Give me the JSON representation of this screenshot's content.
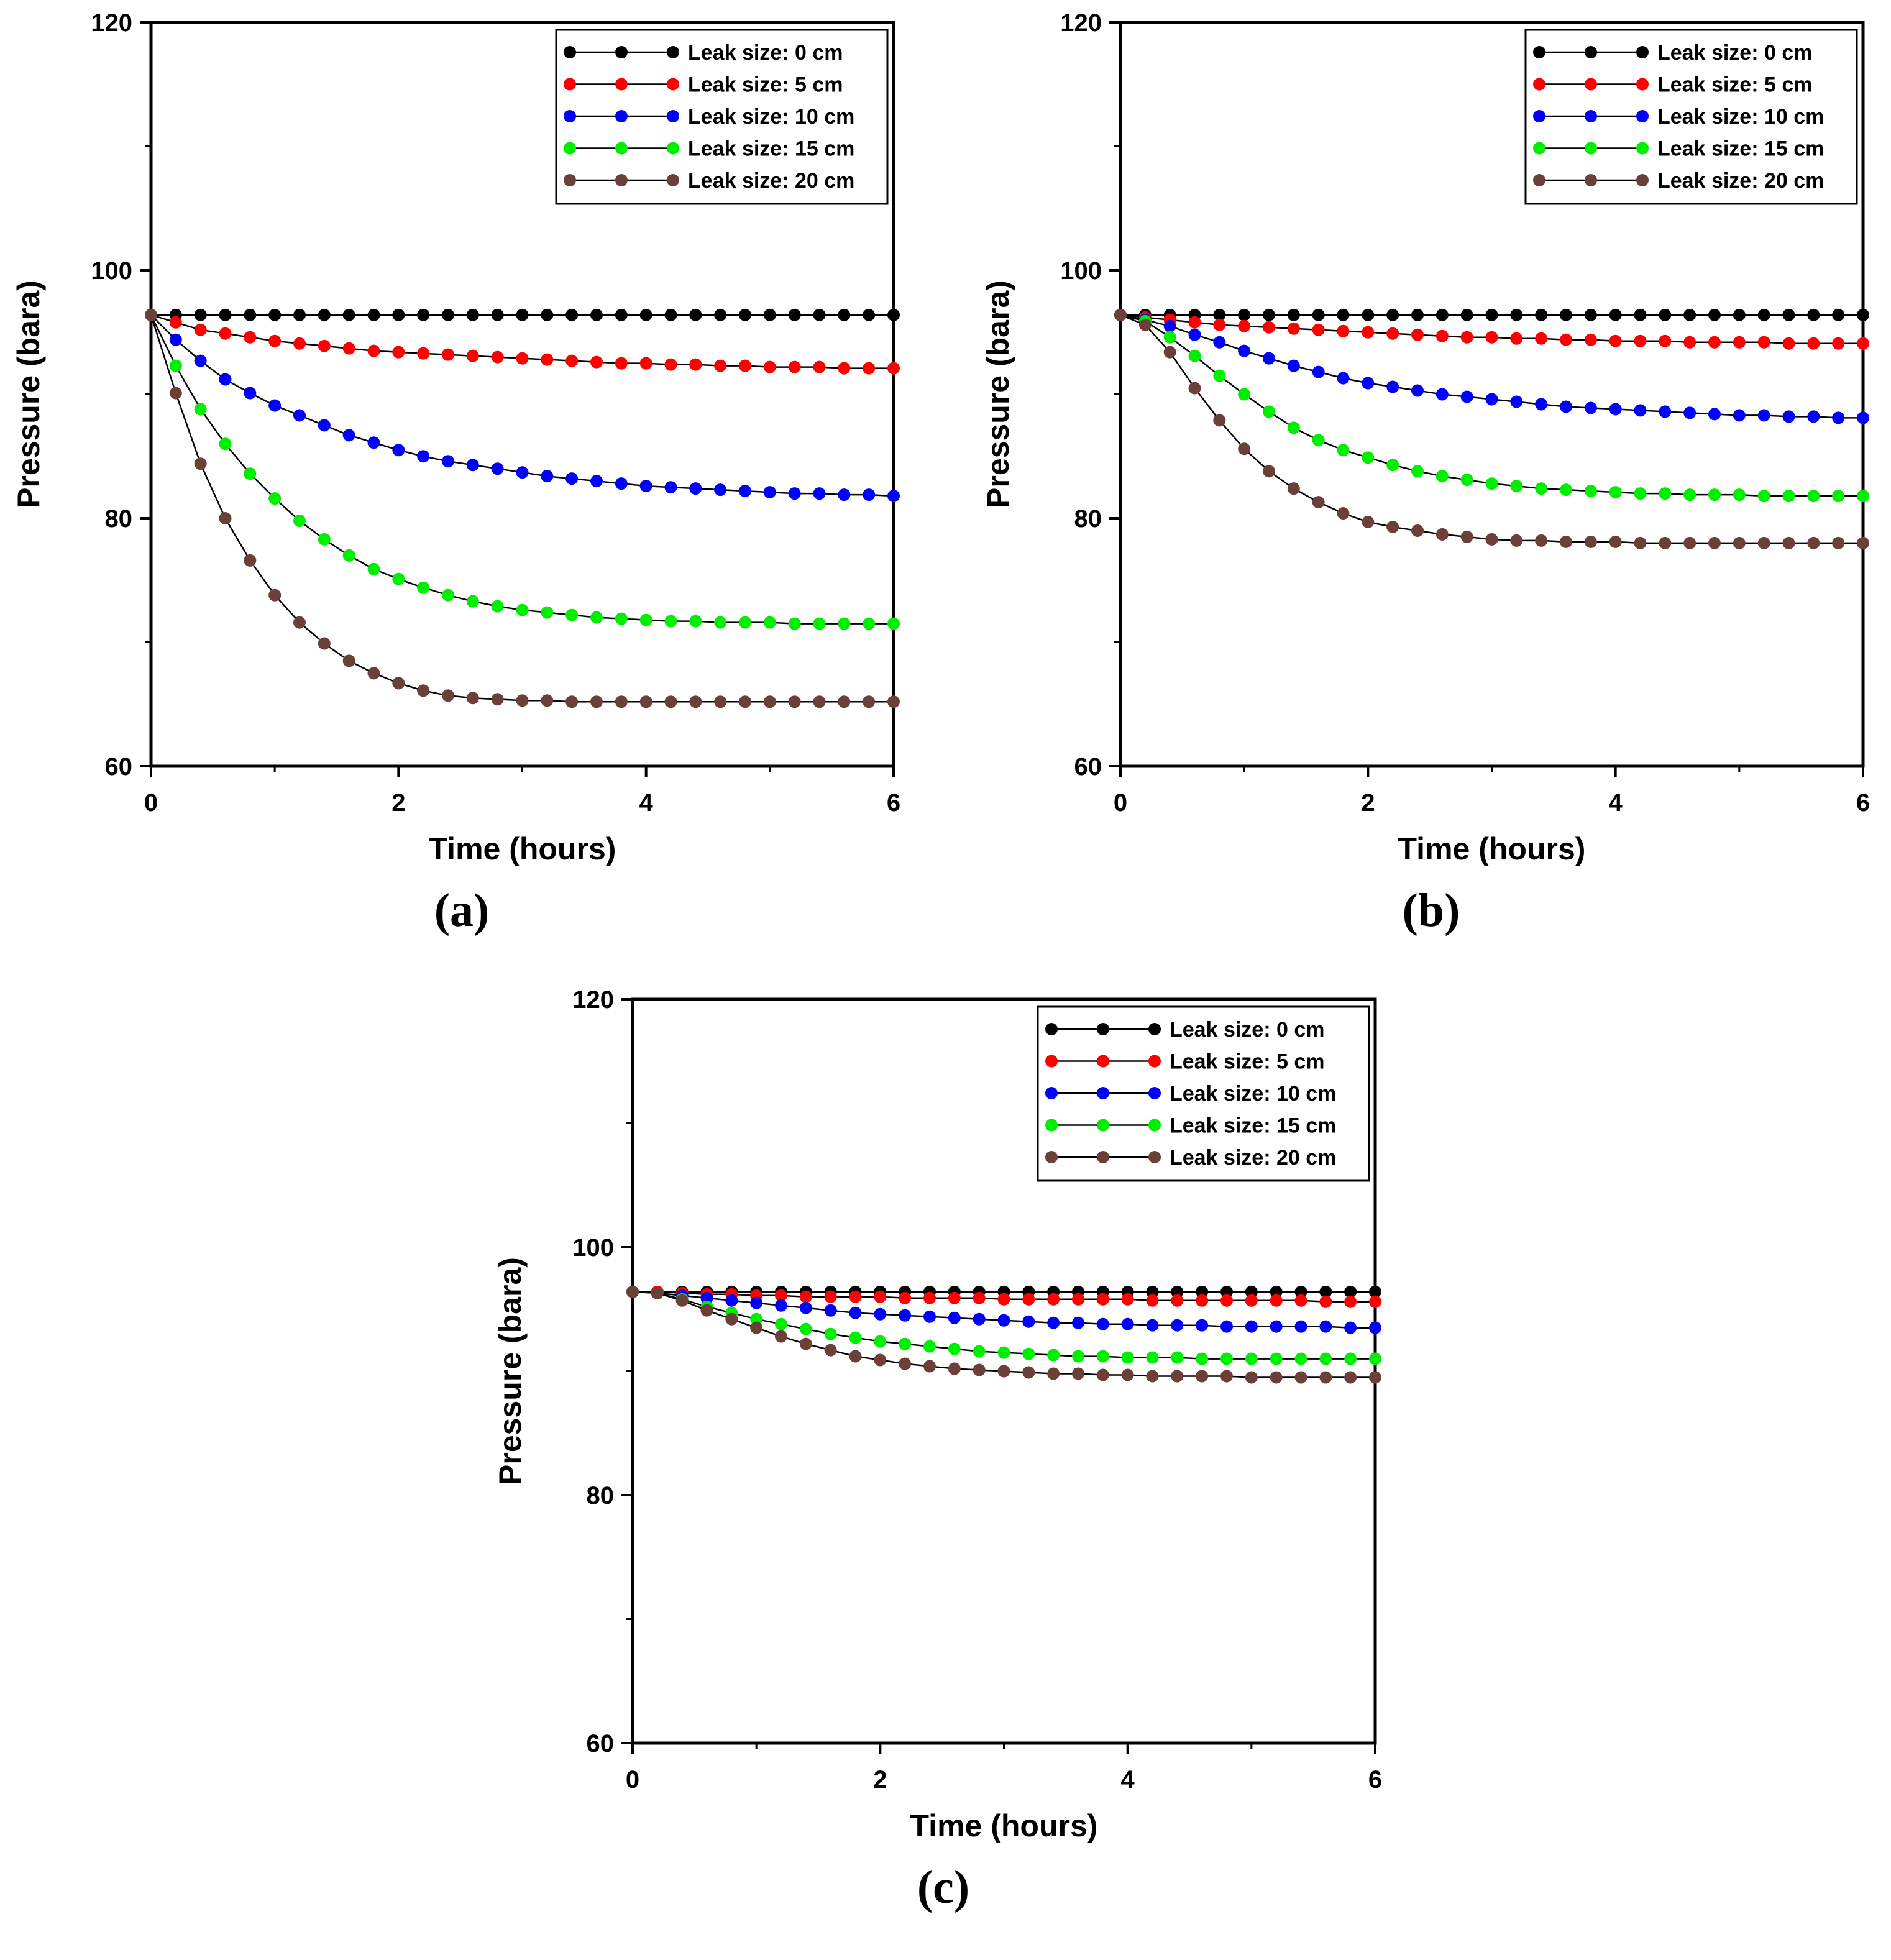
{
  "chart_data": [
    {
      "type": "line",
      "panel_label": "(a)",
      "xlabel": "Time (hours)",
      "ylabel": "Pressure (bara)",
      "xlim": [
        0,
        6
      ],
      "ylim": [
        60,
        120
      ],
      "xticks": [
        "0",
        "2",
        "4",
        "6"
      ],
      "yticks": [
        "60",
        "80",
        "100",
        "120"
      ],
      "grid": false,
      "legend_position": "top-right",
      "x": [
        0,
        0.2,
        0.4,
        0.6,
        0.8,
        1.0,
        1.2,
        1.4,
        1.6,
        1.8,
        2.0,
        2.2,
        2.4,
        2.6,
        2.8,
        3.0,
        3.2,
        3.4,
        3.6,
        3.8,
        4.0,
        4.2,
        4.4,
        4.6,
        4.8,
        5.0,
        5.2,
        5.4,
        5.6,
        5.8,
        6.0
      ],
      "series": [
        {
          "name": "Leak size: 0 cm",
          "color": "#000000",
          "values": [
            96.4,
            96.4,
            96.4,
            96.4,
            96.4,
            96.4,
            96.4,
            96.4,
            96.4,
            96.4,
            96.4,
            96.4,
            96.4,
            96.4,
            96.4,
            96.4,
            96.4,
            96.4,
            96.4,
            96.4,
            96.4,
            96.4,
            96.4,
            96.4,
            96.4,
            96.4,
            96.4,
            96.4,
            96.4,
            96.4,
            96.4
          ]
        },
        {
          "name": "Leak size: 5 cm",
          "color": "#ff0000",
          "values": [
            96.4,
            95.8,
            95.2,
            94.9,
            94.6,
            94.3,
            94.1,
            93.9,
            93.7,
            93.5,
            93.4,
            93.3,
            93.2,
            93.1,
            93.0,
            92.9,
            92.8,
            92.7,
            92.6,
            92.5,
            92.5,
            92.4,
            92.4,
            92.3,
            92.3,
            92.2,
            92.2,
            92.2,
            92.1,
            92.1,
            92.1
          ]
        },
        {
          "name": "Leak size: 10 cm",
          "color": "#0000ff",
          "values": [
            96.4,
            94.4,
            92.7,
            91.2,
            90.1,
            89.1,
            88.3,
            87.5,
            86.7,
            86.1,
            85.5,
            85.0,
            84.6,
            84.3,
            84.0,
            83.7,
            83.4,
            83.2,
            83.0,
            82.8,
            82.6,
            82.5,
            82.4,
            82.3,
            82.2,
            82.1,
            82.0,
            82.0,
            81.9,
            81.9,
            81.8
          ]
        },
        {
          "name": "Leak size: 15 cm",
          "color": "#00ee00",
          "values": [
            96.4,
            92.3,
            88.8,
            86.0,
            83.6,
            81.6,
            79.8,
            78.3,
            77.0,
            75.9,
            75.1,
            74.4,
            73.8,
            73.3,
            72.9,
            72.6,
            72.4,
            72.2,
            72.0,
            71.9,
            71.8,
            71.7,
            71.7,
            71.6,
            71.6,
            71.6,
            71.5,
            71.5,
            71.5,
            71.5,
            71.5
          ]
        },
        {
          "name": "Leak size: 20 cm",
          "color": "#6b4038",
          "values": [
            96.4,
            90.1,
            84.4,
            80.0,
            76.6,
            73.8,
            71.6,
            69.9,
            68.5,
            67.5,
            66.7,
            66.1,
            65.7,
            65.5,
            65.4,
            65.3,
            65.3,
            65.2,
            65.2,
            65.2,
            65.2,
            65.2,
            65.2,
            65.2,
            65.2,
            65.2,
            65.2,
            65.2,
            65.2,
            65.2,
            65.2
          ]
        }
      ]
    },
    {
      "type": "line",
      "panel_label": "(b)",
      "xlabel": "Time (hours)",
      "ylabel": "Pressure (bara)",
      "xlim": [
        0,
        6
      ],
      "ylim": [
        60,
        120
      ],
      "xticks": [
        "0",
        "2",
        "4",
        "6"
      ],
      "yticks": [
        "60",
        "80",
        "100",
        "120"
      ],
      "grid": false,
      "legend_position": "top-right",
      "x": [
        0,
        0.2,
        0.4,
        0.6,
        0.8,
        1.0,
        1.2,
        1.4,
        1.6,
        1.8,
        2.0,
        2.2,
        2.4,
        2.6,
        2.8,
        3.0,
        3.2,
        3.4,
        3.6,
        3.8,
        4.0,
        4.2,
        4.4,
        4.6,
        4.8,
        5.0,
        5.2,
        5.4,
        5.6,
        5.8,
        6.0
      ],
      "series": [
        {
          "name": "Leak size: 0 cm",
          "color": "#000000",
          "values": [
            96.4,
            96.4,
            96.4,
            96.4,
            96.4,
            96.4,
            96.4,
            96.4,
            96.4,
            96.4,
            96.4,
            96.4,
            96.4,
            96.4,
            96.4,
            96.4,
            96.4,
            96.4,
            96.4,
            96.4,
            96.4,
            96.4,
            96.4,
            96.4,
            96.4,
            96.4,
            96.4,
            96.4,
            96.4,
            96.4,
            96.4
          ]
        },
        {
          "name": "Leak size: 5 cm",
          "color": "#ff0000",
          "values": [
            96.4,
            96.2,
            96.0,
            95.8,
            95.6,
            95.5,
            95.4,
            95.3,
            95.2,
            95.1,
            95.0,
            94.9,
            94.8,
            94.7,
            94.6,
            94.6,
            94.5,
            94.5,
            94.4,
            94.4,
            94.3,
            94.3,
            94.3,
            94.2,
            94.2,
            94.2,
            94.2,
            94.1,
            94.1,
            94.1,
            94.1
          ]
        },
        {
          "name": "Leak size: 10 cm",
          "color": "#0000ff",
          "values": [
            96.4,
            96.0,
            95.5,
            94.8,
            94.2,
            93.5,
            92.9,
            92.3,
            91.8,
            91.3,
            90.9,
            90.6,
            90.3,
            90.0,
            89.8,
            89.6,
            89.4,
            89.2,
            89.0,
            88.9,
            88.8,
            88.7,
            88.6,
            88.5,
            88.4,
            88.3,
            88.3,
            88.2,
            88.2,
            88.1,
            88.1
          ]
        },
        {
          "name": "Leak size: 15 cm",
          "color": "#00ee00",
          "values": [
            96.4,
            95.9,
            94.6,
            93.1,
            91.5,
            90.0,
            88.6,
            87.3,
            86.3,
            85.5,
            84.9,
            84.3,
            83.8,
            83.4,
            83.1,
            82.8,
            82.6,
            82.4,
            82.3,
            82.2,
            82.1,
            82.0,
            82.0,
            81.9,
            81.9,
            81.9,
            81.8,
            81.8,
            81.8,
            81.8,
            81.8
          ]
        },
        {
          "name": "Leak size: 20 cm",
          "color": "#6b4038",
          "values": [
            96.4,
            95.6,
            93.4,
            90.5,
            87.9,
            85.6,
            83.8,
            82.4,
            81.3,
            80.4,
            79.7,
            79.3,
            79.0,
            78.7,
            78.5,
            78.3,
            78.2,
            78.2,
            78.1,
            78.1,
            78.1,
            78.0,
            78.0,
            78.0,
            78.0,
            78.0,
            78.0,
            78.0,
            78.0,
            78.0,
            78.0
          ]
        }
      ]
    },
    {
      "type": "line",
      "panel_label": "(c)",
      "xlabel": "Time (hours)",
      "ylabel": "Pressure (bara)",
      "xlim": [
        0,
        6
      ],
      "ylim": [
        60,
        120
      ],
      "xticks": [
        "0",
        "2",
        "4",
        "6"
      ],
      "yticks": [
        "60",
        "80",
        "100",
        "120"
      ],
      "grid": false,
      "legend_position": "top-right",
      "x": [
        0,
        0.2,
        0.4,
        0.6,
        0.8,
        1.0,
        1.2,
        1.4,
        1.6,
        1.8,
        2.0,
        2.2,
        2.4,
        2.6,
        2.8,
        3.0,
        3.2,
        3.4,
        3.6,
        3.8,
        4.0,
        4.2,
        4.4,
        4.6,
        4.8,
        5.0,
        5.2,
        5.4,
        5.6,
        5.8,
        6.0
      ],
      "series": [
        {
          "name": "Leak size: 0 cm",
          "color": "#000000",
          "values": [
            96.4,
            96.4,
            96.4,
            96.4,
            96.4,
            96.4,
            96.4,
            96.4,
            96.4,
            96.4,
            96.4,
            96.4,
            96.4,
            96.4,
            96.4,
            96.4,
            96.4,
            96.4,
            96.4,
            96.4,
            96.4,
            96.4,
            96.4,
            96.4,
            96.4,
            96.4,
            96.4,
            96.4,
            96.4,
            96.4,
            96.4
          ]
        },
        {
          "name": "Leak size: 5 cm",
          "color": "#ff0000",
          "values": [
            96.4,
            96.4,
            96.3,
            96.2,
            96.2,
            96.1,
            96.1,
            96.0,
            96.0,
            96.0,
            96.0,
            95.9,
            95.9,
            95.9,
            95.9,
            95.8,
            95.8,
            95.8,
            95.8,
            95.8,
            95.8,
            95.7,
            95.7,
            95.7,
            95.7,
            95.7,
            95.7,
            95.7,
            95.6,
            95.6,
            95.6
          ]
        },
        {
          "name": "Leak size: 10 cm",
          "color": "#0000ff",
          "values": [
            96.4,
            96.3,
            96.1,
            95.9,
            95.7,
            95.5,
            95.3,
            95.1,
            94.9,
            94.7,
            94.6,
            94.5,
            94.4,
            94.3,
            94.2,
            94.1,
            94.0,
            93.9,
            93.9,
            93.8,
            93.8,
            93.7,
            93.7,
            93.7,
            93.6,
            93.6,
            93.6,
            93.6,
            93.6,
            93.5,
            93.5
          ]
        },
        {
          "name": "Leak size: 15 cm",
          "color": "#00ee00",
          "values": [
            96.4,
            96.3,
            95.8,
            95.2,
            94.7,
            94.2,
            93.8,
            93.4,
            93.0,
            92.7,
            92.4,
            92.2,
            92.0,
            91.8,
            91.6,
            91.5,
            91.4,
            91.3,
            91.2,
            91.2,
            91.1,
            91.1,
            91.1,
            91.0,
            91.0,
            91.0,
            91.0,
            91.0,
            91.0,
            91.0,
            91.0
          ]
        },
        {
          "name": "Leak size: 20 cm",
          "color": "#6b4038",
          "values": [
            96.4,
            96.3,
            95.7,
            94.9,
            94.2,
            93.5,
            92.8,
            92.2,
            91.7,
            91.2,
            90.9,
            90.6,
            90.4,
            90.2,
            90.1,
            90.0,
            89.9,
            89.8,
            89.8,
            89.7,
            89.7,
            89.6,
            89.6,
            89.6,
            89.6,
            89.5,
            89.5,
            89.5,
            89.5,
            89.5,
            89.5
          ]
        }
      ]
    }
  ]
}
